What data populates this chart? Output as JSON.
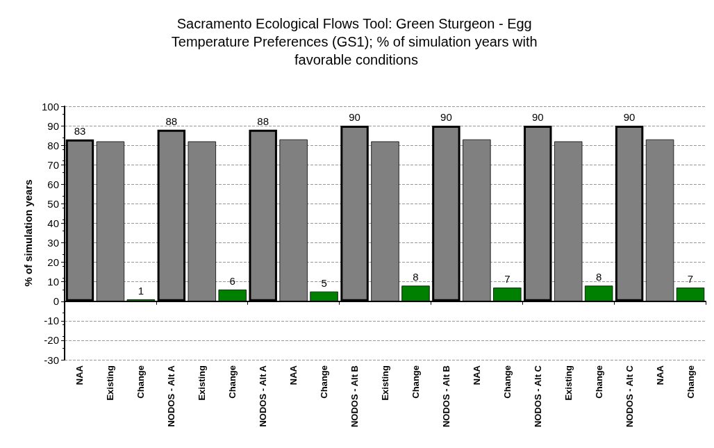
{
  "chart_data": {
    "type": "bar",
    "title": "Sacramento Ecological Flows Tool: Green Sturgeon - Egg Temperature Preferences (GS1); % of simulation years with favorable conditions",
    "ylabel": "% of simulation years",
    "categories": [
      "NAA",
      "Existing",
      "Change",
      "NODOS - Alt A",
      "Existing",
      "Change",
      "NODOS - Alt A",
      "NAA",
      "Change",
      "NODOS - Alt B",
      "Existing",
      "Change",
      "NODOS - Alt B",
      "NAA",
      "Change",
      "NODOS - Alt C",
      "Existing",
      "Change",
      "NODOS - Alt C",
      "NAA",
      "Change"
    ],
    "values": [
      83,
      82,
      1,
      88,
      82,
      6,
      88,
      83,
      5,
      90,
      82,
      8,
      90,
      83,
      7,
      90,
      82,
      8,
      90,
      83,
      7
    ],
    "value_labels": [
      "83",
      null,
      "1",
      "88",
      null,
      "6",
      "88",
      null,
      "5",
      "90",
      null,
      "8",
      "90",
      null,
      "7",
      "90",
      null,
      "8",
      "90",
      null,
      "7"
    ],
    "colors": [
      "#808080",
      "#808080",
      "#008000",
      "#808080",
      "#808080",
      "#008000",
      "#808080",
      "#808080",
      "#008000",
      "#808080",
      "#808080",
      "#008000",
      "#808080",
      "#808080",
      "#008000",
      "#808080",
      "#808080",
      "#008000",
      "#808080",
      "#808080",
      "#008000"
    ],
    "ylim": [
      -30,
      100
    ],
    "yticks": [
      -30,
      -20,
      -10,
      0,
      10,
      20,
      30,
      40,
      50,
      60,
      70,
      80,
      90,
      100
    ],
    "grid": "y"
  }
}
